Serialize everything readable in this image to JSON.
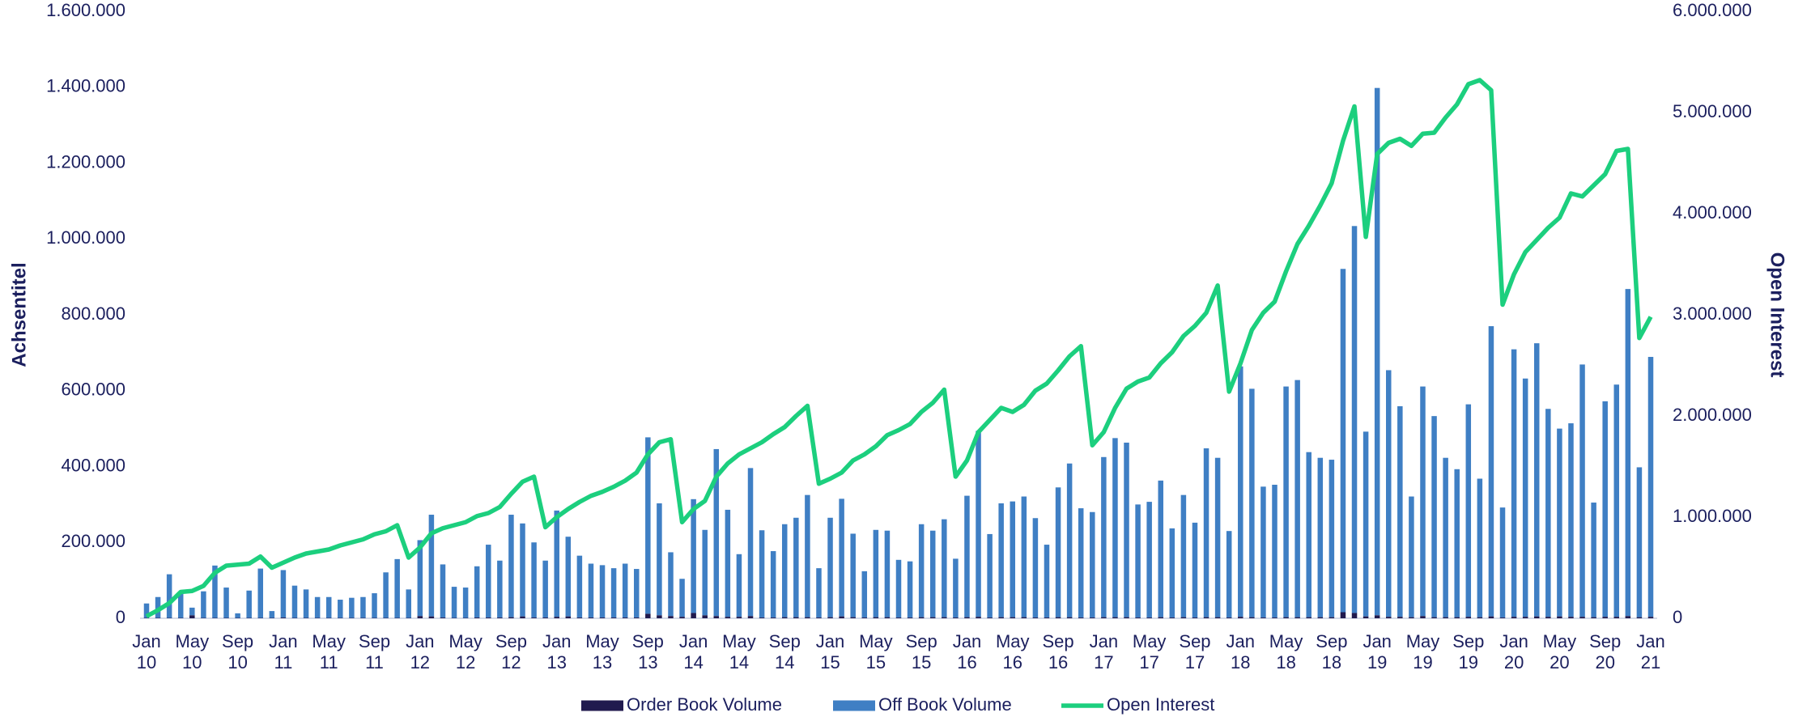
{
  "chart_data": {
    "type": "bar",
    "stacked": true,
    "y_label": "Achsentitel",
    "y2_label": "Open Interest",
    "categories": [
      "Jan 10",
      null,
      null,
      null,
      "May 10",
      null,
      null,
      null,
      "Sep 10",
      null,
      null,
      null,
      "Jan 11",
      null,
      null,
      null,
      "May 11",
      null,
      null,
      null,
      "Sep 11",
      null,
      null,
      null,
      "Jan 12",
      null,
      null,
      null,
      "May 12",
      null,
      null,
      null,
      "Sep 12",
      null,
      null,
      null,
      "Jan 13",
      null,
      null,
      null,
      "May 13",
      null,
      null,
      null,
      "Sep 13",
      null,
      null,
      null,
      "Jan 14",
      null,
      null,
      null,
      "May 14",
      null,
      null,
      null,
      "Sep 14",
      null,
      null,
      null,
      "Jan 15",
      null,
      null,
      null,
      "May 15",
      null,
      null,
      null,
      "Sep 15",
      null,
      null,
      null,
      "Jan 16",
      null,
      null,
      null,
      "May 16",
      null,
      null,
      null,
      "Sep 16",
      null,
      null,
      null,
      "Jan 17",
      null,
      null,
      null,
      "May 17",
      null,
      null,
      null,
      "Sep 17",
      null,
      null,
      null,
      "Jan 18",
      null,
      null,
      null,
      "May 18",
      null,
      null,
      null,
      "Sep 18",
      null,
      null,
      null,
      "Jan 19",
      null,
      null,
      null,
      "May 19",
      null,
      null,
      null,
      "Sep 19",
      null,
      null,
      null,
      "Jan 20",
      null,
      null,
      null,
      "May 20",
      null,
      null,
      null,
      "Sep 20",
      null,
      null,
      null,
      "Jan 21"
    ],
    "series": [
      {
        "name": "Order Book Volume",
        "type": "bar",
        "color": "#201a4e",
        "values": [
          1000,
          1000,
          1000,
          1000,
          8000,
          1000,
          1000,
          1000,
          1000,
          1000,
          1000,
          1000,
          2000,
          1000,
          1000,
          1000,
          1000,
          1000,
          1000,
          1000,
          1000,
          1000,
          1000,
          1000,
          6000,
          5000,
          2000,
          1000,
          1000,
          2000,
          2000,
          2000,
          3000,
          5000,
          2000,
          2000,
          4000,
          5000,
          2000,
          2000,
          2000,
          2000,
          2000,
          2000,
          12000,
          8000,
          6000,
          4000,
          14000,
          8000,
          6000,
          4000,
          4000,
          6000,
          2000,
          2000,
          3000,
          3000,
          3000,
          2000,
          3000,
          5000,
          3000,
          2000,
          3000,
          3000,
          2000,
          2000,
          3000,
          3000,
          3000,
          2000,
          3000,
          4000,
          2000,
          3000,
          3000,
          3000,
          2000,
          2000,
          3000,
          3000,
          2000,
          2000,
          3000,
          3000,
          3000,
          2000,
          2000,
          3000,
          2000,
          3000,
          2000,
          3000,
          3000,
          2000,
          4000,
          3000,
          2000,
          2000,
          3000,
          3000,
          3000,
          3000,
          3000,
          16000,
          14000,
          5000,
          8000,
          4000,
          4000,
          3000,
          6000,
          3000,
          3000,
          3000,
          4000,
          3000,
          5000,
          2000,
          4000,
          4000,
          5000,
          4000,
          5000,
          4000,
          4000,
          3000,
          4000,
          4000,
          6000,
          3000,
          4000
        ]
      },
      {
        "name": "Off Book Volume",
        "type": "bar",
        "color": "#3f7fc4",
        "values": [
          38000,
          55000,
          115000,
          65000,
          20000,
          70000,
          138000,
          80000,
          12000,
          72000,
          130000,
          18000,
          125000,
          85000,
          75000,
          55000,
          55000,
          48000,
          53000,
          55000,
          65000,
          120000,
          155000,
          75000,
          200000,
          268000,
          140000,
          82000,
          80000,
          135000,
          192000,
          150000,
          270000,
          245000,
          198000,
          150000,
          280000,
          210000,
          163000,
          142000,
          138000,
          130000,
          142000,
          128000,
          465000,
          295000,
          168000,
          100000,
          300000,
          225000,
          440000,
          282000,
          165000,
          390000,
          230000,
          175000,
          245000,
          262000,
          322000,
          130000,
          262000,
          310000,
          220000,
          122000,
          230000,
          228000,
          152000,
          148000,
          245000,
          228000,
          258000,
          155000,
          320000,
          490000,
          220000,
          300000,
          305000,
          318000,
          262000,
          192000,
          342000,
          405000,
          288000,
          278000,
          422000,
          472000,
          460000,
          298000,
          305000,
          360000,
          235000,
          322000,
          250000,
          445000,
          420000,
          228000,
          660000,
          602000,
          345000,
          350000,
          608000,
          625000,
          435000,
          420000,
          415000,
          905000,
          1020000,
          487000,
          1390000,
          650000,
          555000,
          318000,
          605000,
          530000,
          420000,
          390000,
          560000,
          365000,
          765000,
          290000,
          705000,
          628000,
          720000,
          548000,
          495000,
          510000,
          665000,
          302000,
          568000,
          612000,
          862000,
          395000,
          685000
        ]
      },
      {
        "name": "Open Interest",
        "type": "line",
        "axis": "y2",
        "color": "#1ccf7e",
        "values": [
          20000,
          80000,
          150000,
          260000,
          270000,
          320000,
          450000,
          520000,
          530000,
          540000,
          610000,
          500000,
          550000,
          600000,
          640000,
          660000,
          680000,
          720000,
          750000,
          780000,
          830000,
          860000,
          920000,
          600000,
          700000,
          840000,
          890000,
          920000,
          950000,
          1010000,
          1040000,
          1100000,
          1230000,
          1350000,
          1400000,
          900000,
          1000000,
          1080000,
          1150000,
          1210000,
          1250000,
          1300000,
          1360000,
          1440000,
          1620000,
          1740000,
          1770000,
          950000,
          1080000,
          1160000,
          1400000,
          1530000,
          1620000,
          1680000,
          1740000,
          1820000,
          1890000,
          2000000,
          2100000,
          1330000,
          1380000,
          1440000,
          1560000,
          1620000,
          1700000,
          1810000,
          1860000,
          1920000,
          2040000,
          2130000,
          2260000,
          1400000,
          1560000,
          1840000,
          1960000,
          2080000,
          2040000,
          2110000,
          2250000,
          2320000,
          2450000,
          2590000,
          2690000,
          1710000,
          1840000,
          2080000,
          2270000,
          2340000,
          2380000,
          2520000,
          2630000,
          2790000,
          2890000,
          3020000,
          3290000,
          2240000,
          2520000,
          2850000,
          3020000,
          3130000,
          3430000,
          3700000,
          3880000,
          4080000,
          4300000,
          4720000,
          5060000,
          3770000,
          4590000,
          4700000,
          4740000,
          4670000,
          4790000,
          4800000,
          4950000,
          5080000,
          5280000,
          5320000,
          5220000,
          3100000,
          3400000,
          3620000,
          3740000,
          3860000,
          3960000,
          4200000,
          4170000,
          4280000,
          4390000,
          4620000,
          4640000,
          2770000,
          2980000
        ]
      }
    ],
    "ylim": [
      0,
      1600000
    ],
    "yticks": [
      0,
      {
        "value": 200000,
        "label": "200.000"
      },
      {
        "value": 400000,
        "label": "400.000"
      },
      {
        "value": 600000,
        "label": "600.000"
      },
      {
        "value": 800000,
        "label": "800.000"
      },
      {
        "value": 1000000,
        "label": "1.000.000"
      },
      {
        "value": 1200000,
        "label": "1.200.000"
      },
      {
        "value": 1400000,
        "label": "1.400.000"
      },
      {
        "value": 1600000,
        "label": "1.600.000"
      }
    ],
    "y2lim": [
      0,
      6000000
    ],
    "y2ticks": [
      0,
      {
        "value": 1000000,
        "label": "1.000.000"
      },
      {
        "value": 2000000,
        "label": "2.000.000"
      },
      {
        "value": 3000000,
        "label": "3.000.000"
      },
      {
        "value": 4000000,
        "label": "4.000.000"
      },
      {
        "value": 5000000,
        "label": "5.000.000"
      },
      {
        "value": 6000000,
        "label": "6.000.000"
      }
    ],
    "grid": false,
    "legend": "bottom"
  }
}
